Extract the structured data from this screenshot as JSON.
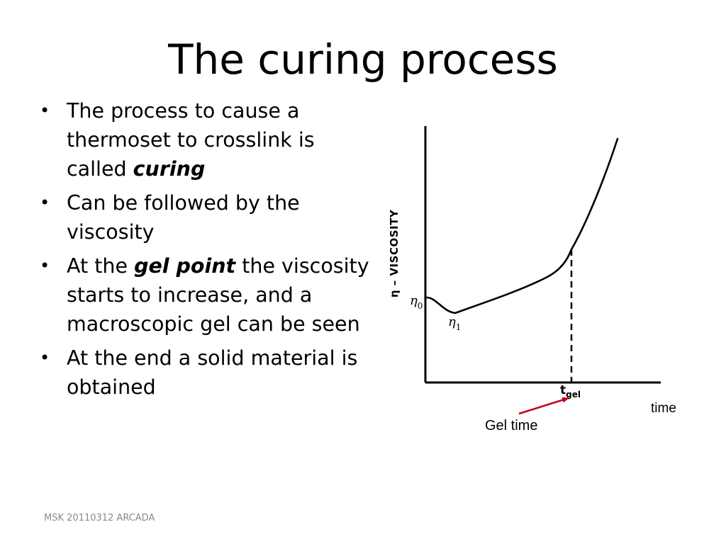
{
  "slide": {
    "title": "The curing process",
    "footer": "MSK 20110312 ARCADA"
  },
  "bullets": [
    {
      "pre": "The process to cause a thermoset to crosslink is called ",
      "em": "curing",
      "post": ""
    },
    {
      "pre": "Can be followed by the viscosity",
      "em": "",
      "post": ""
    },
    {
      "pre": "At the ",
      "em": "gel point",
      "post": " the viscosity starts to increase, and a macroscopic gel can be seen"
    },
    {
      "pre": "At the end a solid material is obtained",
      "em": "",
      "post": ""
    }
  ],
  "diagram": {
    "y_axis_label": "η – VISCOSITY",
    "x_axis_label": "time",
    "eta0_label": "η",
    "eta0_sub": "0",
    "eta1_label": "η",
    "eta1_sub": "1",
    "tgel_label": "t",
    "tgel_sub": "gel",
    "gel_time_label": "Gel time",
    "arrow_color": "#c0001a"
  }
}
